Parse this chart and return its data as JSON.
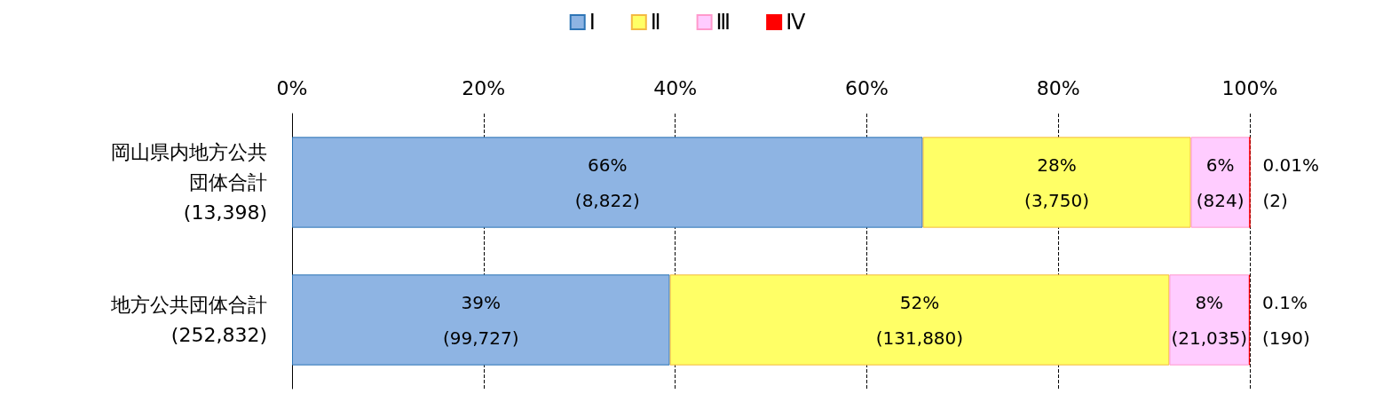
{
  "chart_data": {
    "type": "bar",
    "orientation": "horizontal",
    "stacked": true,
    "categories": [
      "岡山県内地方公共団体合計(13,398)",
      "地方公共団体合計(252,832)"
    ],
    "series": [
      {
        "name": "Ⅰ",
        "color": "#8eb4e3",
        "values": [
          65.85,
          39.44
        ],
        "value_labels": [
          "66%\n(8,822)",
          "39%\n(99,727)"
        ]
      },
      {
        "name": "Ⅱ",
        "color": "#ffff66",
        "values": [
          27.99,
          52.16
        ],
        "value_labels": [
          "28%\n(3,750)",
          "52%\n(131,880)"
        ]
      },
      {
        "name": "Ⅲ",
        "color": "#ffccff",
        "values": [
          6.15,
          8.32
        ],
        "value_labels": [
          "6%\n(824)",
          "8%\n(21,035)"
        ]
      },
      {
        "name": "Ⅳ",
        "color": "#ff0000",
        "values": [
          0.01,
          0.08
        ],
        "value_labels": [
          "0.01%\n(2)",
          "0.1%\n(190)"
        ]
      }
    ],
    "xlim": [
      0,
      100
    ],
    "xticks": [
      {
        "value": 0,
        "label": "0%"
      },
      {
        "value": 20,
        "label": "20%"
      },
      {
        "value": 40,
        "label": "40%"
      },
      {
        "value": 60,
        "label": "60%"
      },
      {
        "value": 80,
        "label": "80%"
      },
      {
        "value": 100,
        "label": "100%"
      }
    ],
    "grid": "x",
    "legend": "top"
  }
}
